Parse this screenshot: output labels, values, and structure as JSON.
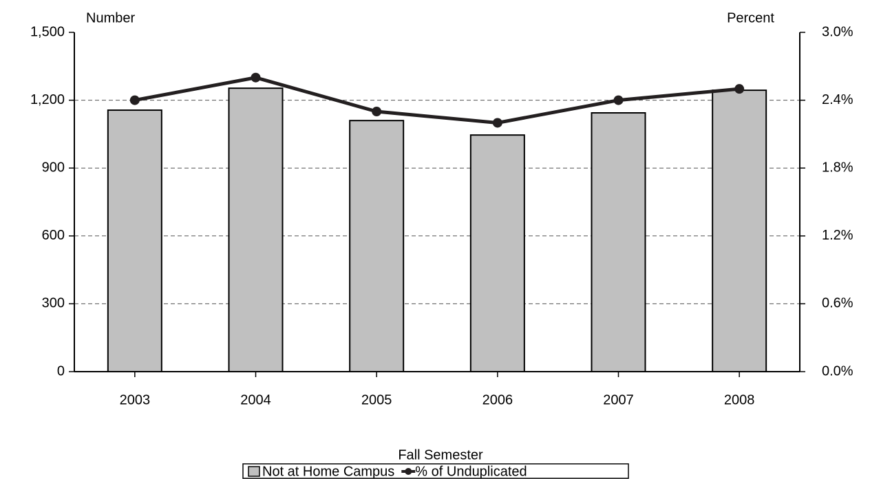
{
  "chart_data": {
    "type": "bar",
    "x_label": "Fall Semester",
    "y_label": "Number",
    "y2_label": "Percent",
    "categories": [
      "2003",
      "2004",
      "2005",
      "2006",
      "2007",
      "2008"
    ],
    "series": [
      {
        "name": "Not at Home Campus",
        "type": "bar",
        "color": "#c0c0c0",
        "values": [
          1156,
          1253,
          1110,
          1046,
          1144,
          1244
        ]
      },
      {
        "name": "% of Unduplicated",
        "type": "line",
        "axis": "y2",
        "color": "#231f20",
        "values": [
          2.4,
          2.6,
          2.3,
          2.2,
          2.4,
          2.5
        ]
      }
    ],
    "ylim": [
      0,
      1500
    ],
    "yticks": [
      0,
      300,
      600,
      900,
      {
        "value": 1200,
        "label": "1,200"
      },
      {
        "value": 1500,
        "label": "1,500"
      }
    ],
    "y2lim": [
      0,
      3.0
    ],
    "y2ticks": [
      {
        "value": 0,
        "label": "0.0%"
      },
      {
        "value": 0.6,
        "label": "0.6%"
      },
      {
        "value": 1.2,
        "label": "1.2%"
      },
      {
        "value": 1.8,
        "label": "1.8%"
      },
      {
        "value": 2.4,
        "label": "2.4%"
      },
      {
        "value": 3.0,
        "label": "3.0%"
      }
    ],
    "grid": true,
    "legend": "bottom"
  }
}
